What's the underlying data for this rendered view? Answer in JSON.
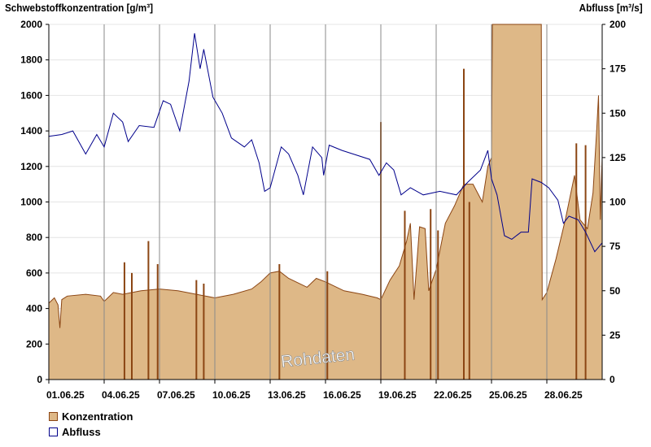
{
  "chart_data": {
    "type": "area+line",
    "left_axis_title": "Schwebstoffkonzentration [g/m³]",
    "right_axis_title": "Abfluss [m³/s]",
    "ylim_left": [
      0,
      2000
    ],
    "yticks_left": [
      0,
      200,
      400,
      600,
      800,
      1000,
      1200,
      1400,
      1600,
      1800,
      2000
    ],
    "ylim_right": [
      0,
      200
    ],
    "yticks_right": [
      0,
      25,
      50,
      75,
      100,
      125,
      150,
      175,
      200
    ],
    "xlim_days": [
      0,
      30
    ],
    "xticks": [
      {
        "day": 0,
        "label": "01.06.25"
      },
      {
        "day": 3,
        "label": "04.06.25"
      },
      {
        "day": 6,
        "label": "07.06.25"
      },
      {
        "day": 9,
        "label": "10.06.25"
      },
      {
        "day": 12,
        "label": "13.06.25"
      },
      {
        "day": 15,
        "label": "16.06.25"
      },
      {
        "day": 18,
        "label": "19.06.25"
      },
      {
        "day": 21,
        "label": "22.06.25"
      },
      {
        "day": 24,
        "label": "25.06.25"
      },
      {
        "day": 27,
        "label": "28.06.25"
      }
    ],
    "annotation": "Rohdaten",
    "series": [
      {
        "name": "Konzentration",
        "color": "#deb887",
        "stroke": "#8b4513",
        "axis": "left",
        "points": [
          [
            0,
            430
          ],
          [
            0.3,
            460
          ],
          [
            0.5,
            420
          ],
          [
            0.6,
            290
          ],
          [
            0.7,
            450
          ],
          [
            1,
            470
          ],
          [
            2,
            480
          ],
          [
            2.8,
            470
          ],
          [
            3,
            440
          ],
          [
            3.5,
            490
          ],
          [
            4,
            480
          ],
          [
            5,
            500
          ],
          [
            6,
            510
          ],
          [
            7,
            500
          ],
          [
            8,
            480
          ],
          [
            9,
            460
          ],
          [
            10,
            480
          ],
          [
            11,
            510
          ],
          [
            11.5,
            550
          ],
          [
            12,
            600
          ],
          [
            12.5,
            610
          ],
          [
            13,
            570
          ],
          [
            14,
            520
          ],
          [
            14.5,
            570
          ],
          [
            15,
            550
          ],
          [
            16,
            500
          ],
          [
            17,
            480
          ],
          [
            17.8,
            460
          ],
          [
            18,
            450
          ],
          [
            18.5,
            560
          ],
          [
            19,
            640
          ],
          [
            19.4,
            780
          ],
          [
            19.6,
            880
          ],
          [
            19.8,
            450
          ],
          [
            20.1,
            860
          ],
          [
            20.4,
            850
          ],
          [
            20.6,
            500
          ],
          [
            21,
            620
          ],
          [
            21.5,
            880
          ],
          [
            22,
            980
          ],
          [
            22.5,
            1100
          ],
          [
            23,
            1100
          ],
          [
            23.5,
            1000
          ],
          [
            23.8,
            1200
          ],
          [
            24,
            1250
          ],
          [
            24.05,
            2000
          ],
          [
            26.7,
            2000
          ],
          [
            26.75,
            450
          ],
          [
            27,
            490
          ],
          [
            27.5,
            680
          ],
          [
            28,
            900
          ],
          [
            28.5,
            1150
          ],
          [
            28.8,
            900
          ],
          [
            29.2,
            850
          ],
          [
            29.5,
            1050
          ],
          [
            29.7,
            1400
          ],
          [
            29.8,
            1600
          ],
          [
            29.9,
            900
          ],
          [
            30,
            1250
          ]
        ],
        "spikes": [
          [
            4.1,
            660
          ],
          [
            4.5,
            600
          ],
          [
            5.4,
            780
          ],
          [
            5.9,
            650
          ],
          [
            8.0,
            560
          ],
          [
            8.4,
            540
          ],
          [
            12.5,
            650
          ],
          [
            15.1,
            610
          ],
          [
            18.0,
            1450
          ],
          [
            19.3,
            950
          ],
          [
            20.7,
            960
          ],
          [
            21.1,
            840
          ],
          [
            22.5,
            1750
          ],
          [
            22.8,
            1000
          ],
          [
            28.6,
            1330
          ],
          [
            29.1,
            1320
          ]
        ]
      },
      {
        "name": "Abfluss",
        "color": "#00008b",
        "axis": "right",
        "points": [
          [
            0,
            137
          ],
          [
            0.7,
            138
          ],
          [
            1.3,
            140
          ],
          [
            2.0,
            127
          ],
          [
            2.6,
            138
          ],
          [
            3.0,
            131
          ],
          [
            3.5,
            150
          ],
          [
            4.0,
            145
          ],
          [
            4.3,
            134
          ],
          [
            4.9,
            143
          ],
          [
            5.7,
            142
          ],
          [
            6.2,
            157
          ],
          [
            6.6,
            155
          ],
          [
            7.1,
            140
          ],
          [
            7.6,
            168
          ],
          [
            7.9,
            195
          ],
          [
            8.2,
            175
          ],
          [
            8.4,
            186
          ],
          [
            8.9,
            159
          ],
          [
            9.4,
            150
          ],
          [
            9.9,
            136
          ],
          [
            10.6,
            131
          ],
          [
            11.0,
            135
          ],
          [
            11.4,
            122
          ],
          [
            11.7,
            106
          ],
          [
            12.0,
            108
          ],
          [
            12.6,
            131
          ],
          [
            13.0,
            127
          ],
          [
            13.5,
            115
          ],
          [
            13.8,
            104
          ],
          [
            14.3,
            131
          ],
          [
            14.8,
            125
          ],
          [
            14.9,
            115
          ],
          [
            15.2,
            132
          ],
          [
            15.9,
            129
          ],
          [
            16.5,
            127
          ],
          [
            17.4,
            124
          ],
          [
            17.9,
            115
          ],
          [
            18.3,
            122
          ],
          [
            18.7,
            118
          ],
          [
            19.1,
            104
          ],
          [
            19.6,
            108
          ],
          [
            20.3,
            104
          ],
          [
            21.2,
            106
          ],
          [
            22.1,
            104
          ],
          [
            22.7,
            111
          ],
          [
            23.4,
            118
          ],
          [
            23.8,
            129
          ],
          [
            24.0,
            113
          ],
          [
            24.3,
            104
          ],
          [
            24.7,
            81
          ],
          [
            25.1,
            79
          ],
          [
            25.6,
            83
          ],
          [
            26.0,
            83
          ],
          [
            26.2,
            113
          ],
          [
            26.7,
            111
          ],
          [
            27.1,
            108
          ],
          [
            27.6,
            101
          ],
          [
            27.9,
            88
          ],
          [
            28.2,
            92
          ],
          [
            28.7,
            90
          ],
          [
            29.1,
            83
          ],
          [
            29.6,
            72
          ],
          [
            30.0,
            77
          ]
        ]
      }
    ]
  }
}
